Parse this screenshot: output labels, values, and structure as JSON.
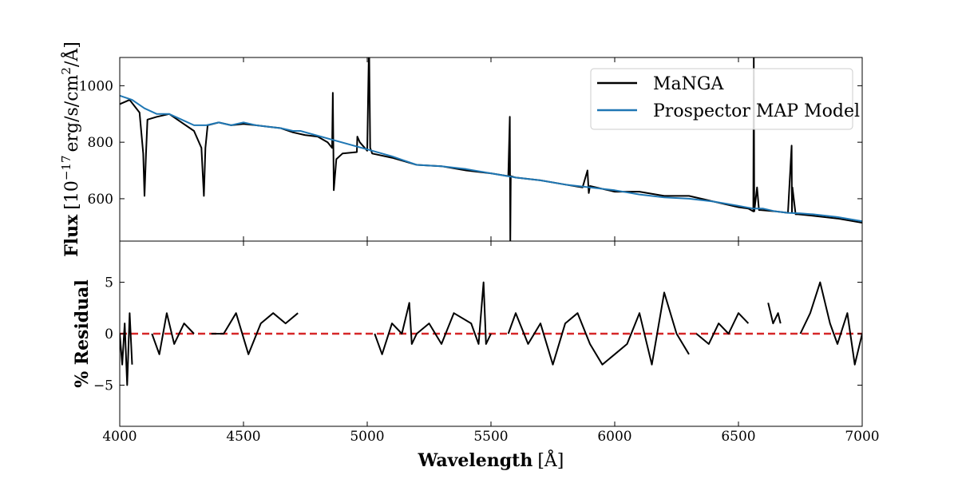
{
  "chart_data": [
    {
      "type": "line",
      "panel": "top",
      "xlim": [
        4000,
        7000
      ],
      "ylim": [
        450,
        1100
      ],
      "ylabel": "Flux [10^-17 erg/s/cm²/Å]",
      "ylabel_parts": {
        "bold": "Flux",
        "unit_prefix": "[10",
        "exponent": "−17",
        "unit_mid": "erg/s/cm",
        "unit_sq": "2",
        "unit_suffix": "/Å]"
      },
      "yticks": [
        600,
        800,
        1000
      ],
      "xticks": [
        4000,
        4500,
        5000,
        5500,
        6000,
        6500,
        7000
      ],
      "show_x_tick_labels": false,
      "legend": {
        "placement": "top-right",
        "entries": [
          "MaNGA",
          "Prospector MAP Model"
        ]
      },
      "series": [
        {
          "name": "MaNGA",
          "color": "#000000",
          "x": [
            4000,
            4040,
            4080,
            4095,
            4100,
            4106,
            4112,
            4150,
            4200,
            4250,
            4300,
            4330,
            4340,
            4346,
            4355,
            4400,
            4450,
            4500,
            4550,
            4600,
            4650,
            4700,
            4750,
            4800,
            4840,
            4858,
            4861,
            4865,
            4875,
            4900,
            4958,
            4960,
            4970,
            5000,
            5006,
            5008,
            5012,
            5020,
            5100,
            5200,
            5300,
            5400,
            5500,
            5570,
            5576,
            5578,
            5580,
            5600,
            5700,
            5800,
            5870,
            5890,
            5895,
            5900,
            6000,
            6100,
            6200,
            6300,
            6400,
            6500,
            6540,
            6560,
            6562,
            6564,
            6575,
            6583,
            6590,
            6650,
            6700,
            6715,
            6716,
            6718,
            6731,
            6740,
            6800,
            6900,
            7000
          ],
          "y": [
            935,
            950,
            905,
            760,
            610,
            760,
            880,
            890,
            900,
            870,
            840,
            780,
            610,
            780,
            860,
            870,
            860,
            865,
            860,
            855,
            850,
            835,
            825,
            820,
            800,
            780,
            975,
            630,
            740,
            760,
            765,
            820,
            800,
            770,
            1100,
            1100,
            780,
            760,
            745,
            720,
            715,
            700,
            690,
            680,
            890,
            450,
            680,
            675,
            665,
            650,
            640,
            700,
            620,
            645,
            625,
            625,
            610,
            610,
            590,
            570,
            565,
            555,
            1100,
            555,
            640,
            560,
            560,
            555,
            550,
            788,
            550,
            640,
            545,
            545,
            540,
            530,
            515
          ]
        },
        {
          "name": "Prospector MAP Model",
          "color": "#1f77b4",
          "x": [
            4000,
            4050,
            4100,
            4150,
            4200,
            4250,
            4300,
            4350,
            4400,
            4450,
            4500,
            4550,
            4600,
            4650,
            4700,
            4730,
            5020,
            5100,
            5200,
            5300,
            5400,
            5500,
            5600,
            5700,
            5800,
            5900,
            6000,
            6100,
            6200,
            6300,
            6400,
            6500,
            6560,
            6600,
            6650,
            6700,
            6750,
            6800,
            6900,
            7000
          ],
          "y": [
            965,
            950,
            920,
            900,
            900,
            880,
            860,
            860,
            870,
            860,
            870,
            860,
            855,
            850,
            840,
            840,
            770,
            750,
            720,
            715,
            705,
            690,
            675,
            665,
            650,
            640,
            630,
            615,
            605,
            600,
            590,
            575,
            565,
            565,
            555,
            550,
            548,
            545,
            535,
            520
          ]
        }
      ]
    },
    {
      "type": "line",
      "panel": "bottom",
      "xlim": [
        4000,
        7000
      ],
      "ylim": [
        -9,
        9
      ],
      "ylabel": "% Residual",
      "xlabel": "Wavelength [Å]",
      "xlabel_parts": {
        "bold": "Wavelength",
        "unit": "[Å]"
      },
      "yticks": [
        -5,
        0,
        5
      ],
      "ytick_labels": [
        "−5",
        "0",
        "5"
      ],
      "xticks": [
        4000,
        4500,
        5000,
        5500,
        6000,
        6500,
        7000
      ],
      "xtick_labels": [
        "4000",
        "4500",
        "5000",
        "5500",
        "6000",
        "6500",
        "7000"
      ],
      "reference_line": {
        "y": 0,
        "color": "#d62728",
        "style": "dashed"
      },
      "series": [
        {
          "name": "",
          "color": "#000000",
          "segments": [
            {
              "x": [
                4000,
                4010,
                4020,
                4030,
                4040,
                4050
              ],
              "y": [
                0,
                -3,
                1,
                -5,
                2,
                -3
              ]
            },
            {
              "x": [
                4130,
                4160,
                4190,
                4220,
                4260,
                4300
              ],
              "y": [
                0,
                -2,
                2,
                -1,
                1,
                0
              ]
            },
            {
              "x": [
                4370,
                4420,
                4470,
                4520,
                4570,
                4620,
                4670,
                4720
              ],
              "y": [
                0,
                0,
                2,
                -2,
                1,
                2,
                1,
                2
              ]
            },
            {
              "x": [
                5030,
                5060,
                5100,
                5140,
                5170,
                5180,
                5200,
                5250,
                5300,
                5350,
                5420,
                5450,
                5470,
                5480,
                5500
              ],
              "y": [
                0,
                -2,
                1,
                0,
                3,
                -1,
                0,
                1,
                -1,
                2,
                1,
                -1,
                5,
                -1,
                0
              ]
            },
            {
              "x": [
                5570,
                5600,
                5650,
                5700,
                5750,
                5800,
                5850,
                5900,
                5950,
                6000,
                6050,
                6100,
                6150,
                6200,
                6250,
                6300
              ],
              "y": [
                0,
                2,
                -1,
                1,
                -3,
                1,
                2,
                -1,
                -3,
                -2,
                -1,
                2,
                -3,
                4,
                0,
                -2
              ]
            },
            {
              "x": [
                6330,
                6380,
                6420,
                6460,
                6500,
                6540
              ],
              "y": [
                0,
                -1,
                1,
                0,
                2,
                1
              ]
            },
            {
              "x": [
                6620,
                6640,
                6660,
                6670
              ],
              "y": [
                3,
                1,
                2,
                1
              ]
            },
            {
              "x": [
                6750,
                6790,
                6830,
                6870,
                6900,
                6940,
                6970,
                7000
              ],
              "y": [
                0,
                2,
                5,
                1,
                -1,
                2,
                -3,
                0
              ]
            }
          ]
        }
      ]
    }
  ]
}
